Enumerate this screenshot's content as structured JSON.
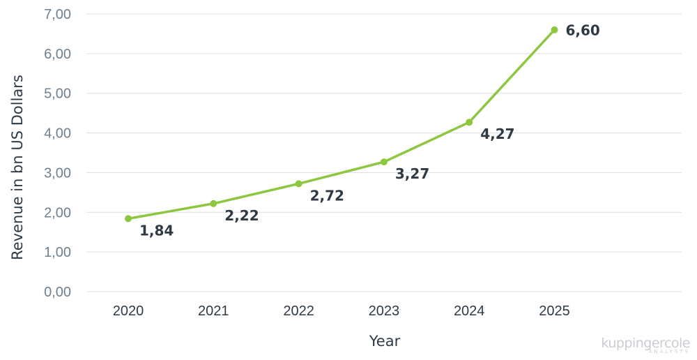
{
  "chart_data": {
    "type": "line",
    "title": "",
    "xlabel": "Year",
    "ylabel": "Revenue in bn US Dollars",
    "categories": [
      "2020",
      "2021",
      "2022",
      "2023",
      "2024",
      "2025"
    ],
    "series": [
      {
        "values": [
          1.84,
          2.22,
          2.72,
          3.27,
          4.27,
          6.6
        ]
      }
    ],
    "data_labels": [
      "1,84",
      "2,22",
      "2,72",
      "3,27",
      "4,27",
      "6,60"
    ],
    "ylim": [
      0,
      7
    ],
    "yticks": [
      "0,00",
      "1,00",
      "2,00",
      "3,00",
      "4,00",
      "5,00",
      "6,00",
      "7,00"
    ],
    "grid": true,
    "line_color": "#8dc63f"
  },
  "watermark": {
    "brand": "kuppingercole",
    "tagline": "ANALYSTS"
  }
}
